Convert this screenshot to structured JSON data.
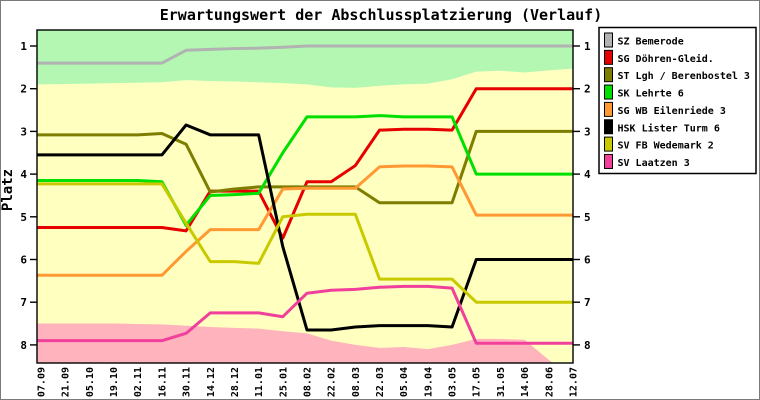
{
  "chart_data": {
    "type": "line",
    "title": "Erwartungswert der Abschlussplatzierung (Verlauf)",
    "ylabel": "Platz",
    "y_axis_inverted": true,
    "y_ticks": [
      1,
      2,
      3,
      4,
      5,
      6,
      7,
      8
    ],
    "ylim": [
      0.6,
      8.4
    ],
    "plot_bg": "#ffffc0",
    "grid": false,
    "legend_position": "right",
    "x_labels": [
      "07.09",
      "21.09",
      "05.10",
      "19.10",
      "02.11",
      "16.11",
      "30.11",
      "14.12",
      "28.12",
      "11.01",
      "25.01",
      "08.02",
      "22.02",
      "08.03",
      "22.03",
      "05.04",
      "19.04",
      "03.05",
      "17.05",
      "31.05",
      "14.06",
      "28.06",
      "12.07"
    ],
    "series": [
      {
        "name": "SZ Bemerode",
        "color": "#b2b2b2",
        "values": [
          1.4,
          1.4,
          1.4,
          1.4,
          1.4,
          1.4,
          1.1,
          1.08,
          1.06,
          1.05,
          1.03,
          1.0,
          1.0,
          1.0,
          1.0,
          1.0,
          1.0,
          1.0,
          1.0,
          1.0,
          1.0,
          1.0,
          1.0
        ]
      },
      {
        "name": "SG Döhren-Gleid.",
        "color": "#e60000",
        "values": [
          5.25,
          5.25,
          5.25,
          5.25,
          5.25,
          5.25,
          5.33,
          4.4,
          4.4,
          4.4,
          5.5,
          4.18,
          4.18,
          3.8,
          2.97,
          2.95,
          2.95,
          2.97,
          2.0,
          2.0,
          2.0,
          2.0,
          2.0
        ]
      },
      {
        "name": "ST Lgh / Berenbostel 3",
        "color": "#7d7d00",
        "values": [
          3.08,
          3.08,
          3.08,
          3.08,
          3.08,
          3.05,
          3.3,
          4.42,
          4.35,
          4.3,
          4.3,
          4.3,
          4.3,
          4.3,
          4.67,
          4.67,
          4.67,
          4.67,
          3.0,
          3.0,
          3.0,
          3.0,
          3.0
        ]
      },
      {
        "name": "SK Lehrte 6",
        "color": "#00e000",
        "values": [
          4.15,
          4.15,
          4.15,
          4.15,
          4.15,
          4.18,
          5.2,
          4.5,
          4.48,
          4.45,
          3.5,
          2.66,
          2.66,
          2.66,
          2.63,
          2.66,
          2.66,
          2.66,
          4.0,
          4.0,
          4.0,
          4.0,
          4.0
        ]
      },
      {
        "name": "SG WB Eilenriede 3",
        "color": "#ff9933",
        "values": [
          6.37,
          6.37,
          6.37,
          6.37,
          6.37,
          6.37,
          5.81,
          5.3,
          5.3,
          5.3,
          4.35,
          4.33,
          4.33,
          4.33,
          3.83,
          3.81,
          3.81,
          3.83,
          4.96,
          4.96,
          4.96,
          4.96,
          4.96
        ]
      },
      {
        "name": "HSK Lister Turm 6",
        "color": "#000000",
        "values": [
          3.55,
          3.55,
          3.55,
          3.55,
          3.55,
          3.55,
          2.85,
          3.08,
          3.08,
          3.08,
          5.7,
          7.65,
          7.65,
          7.58,
          7.55,
          7.55,
          7.55,
          7.58,
          6.0,
          6.0,
          6.0,
          6.0,
          6.0
        ]
      },
      {
        "name": "SV FB Wedemark 2",
        "color": "#c9c900",
        "values": [
          4.23,
          4.23,
          4.23,
          4.23,
          4.23,
          4.23,
          5.15,
          6.05,
          6.05,
          6.09,
          5.0,
          4.94,
          4.94,
          4.94,
          6.46,
          6.46,
          6.46,
          6.46,
          7.0,
          7.0,
          7.0,
          7.0,
          7.0
        ]
      },
      {
        "name": "SV Laatzen 3",
        "color": "#f0409b",
        "values": [
          7.9,
          7.9,
          7.9,
          7.9,
          7.9,
          7.9,
          7.73,
          7.25,
          7.25,
          7.25,
          7.34,
          6.79,
          6.72,
          6.7,
          6.65,
          6.63,
          6.63,
          6.67,
          7.96,
          7.96,
          7.96,
          7.96,
          7.96
        ]
      }
    ],
    "zones": [
      {
        "name": "promotion-zone",
        "color": "#b3f7b3",
        "side": "top",
        "boundary": [
          1.9,
          1.89,
          1.88,
          1.87,
          1.86,
          1.85,
          1.8,
          1.82,
          1.83,
          1.85,
          1.87,
          1.9,
          1.97,
          1.98,
          1.93,
          1.9,
          1.88,
          1.78,
          1.6,
          1.58,
          1.62,
          1.57,
          1.53
        ]
      },
      {
        "name": "relegation-zone",
        "color": "#ffb3bd",
        "side": "bottom",
        "boundary": [
          7.5,
          7.5,
          7.5,
          7.5,
          7.51,
          7.52,
          7.55,
          7.58,
          7.6,
          7.62,
          7.68,
          7.73,
          7.9,
          8.0,
          8.07,
          8.05,
          8.1,
          8.0,
          7.86,
          7.86,
          7.88,
          8.35,
          8.8
        ]
      }
    ]
  }
}
